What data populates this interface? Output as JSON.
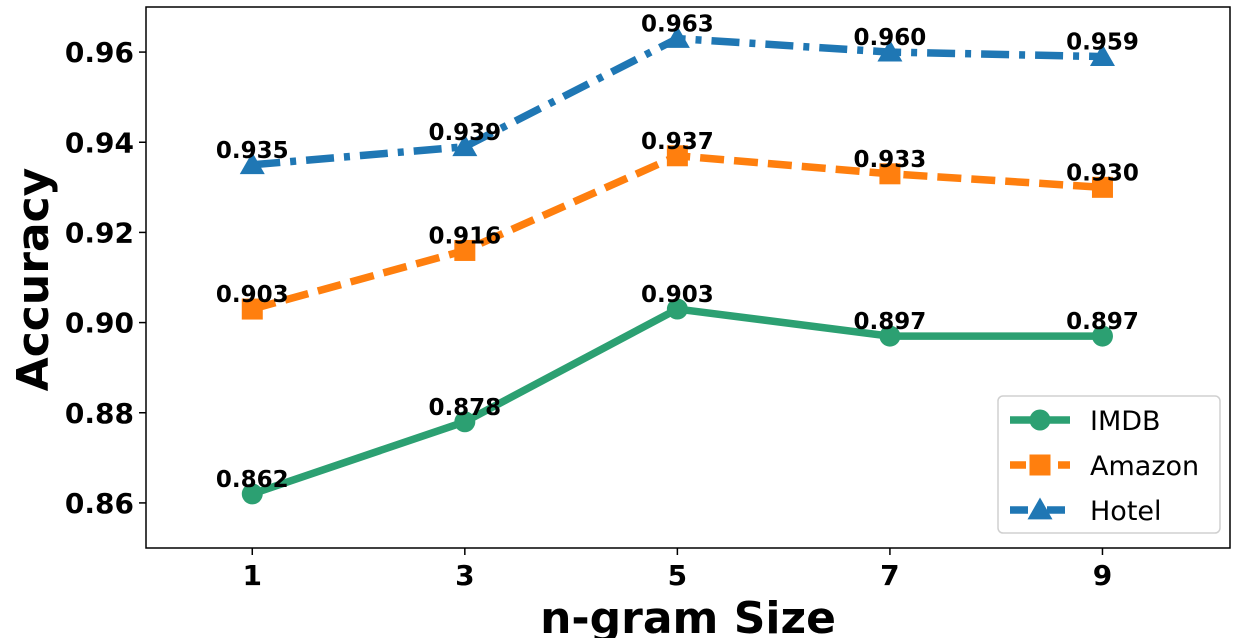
{
  "chart_data": {
    "type": "line",
    "xlabel": "n-gram Size",
    "ylabel": "Accuracy",
    "x": [
      1,
      3,
      5,
      7,
      9
    ],
    "x_tick_labels": [
      "1",
      "3",
      "5",
      "7",
      "9"
    ],
    "xlim": [
      0,
      10.2
    ],
    "ylim": [
      0.85,
      0.97
    ],
    "y_ticks": [
      0.86,
      0.88,
      0.9,
      0.92,
      0.94,
      0.96
    ],
    "y_tick_labels": [
      "0.86",
      "0.88",
      "0.90",
      "0.92",
      "0.94",
      "0.96"
    ],
    "grid": false,
    "legend_position": "bottom-right",
    "series": [
      {
        "name": "IMDB",
        "values": [
          0.862,
          0.878,
          0.903,
          0.897,
          0.897
        ],
        "labels": [
          "0.862",
          "0.878",
          "0.903",
          "0.897",
          "0.897"
        ],
        "color": "#2ca072",
        "marker": "circle",
        "line_style": "solid"
      },
      {
        "name": "Amazon",
        "values": [
          0.903,
          0.916,
          0.937,
          0.933,
          0.93
        ],
        "labels": [
          "0.903",
          "0.916",
          "0.937",
          "0.933",
          "0.930"
        ],
        "color": "#ff7f0e",
        "marker": "square",
        "line_style": "dashed"
      },
      {
        "name": "Hotel",
        "values": [
          0.935,
          0.939,
          0.963,
          0.96,
          0.959
        ],
        "labels": [
          "0.935",
          "0.939",
          "0.963",
          "0.960",
          "0.959"
        ],
        "color": "#1f77b4",
        "marker": "triangle",
        "line_style": "dashdot"
      }
    ]
  }
}
